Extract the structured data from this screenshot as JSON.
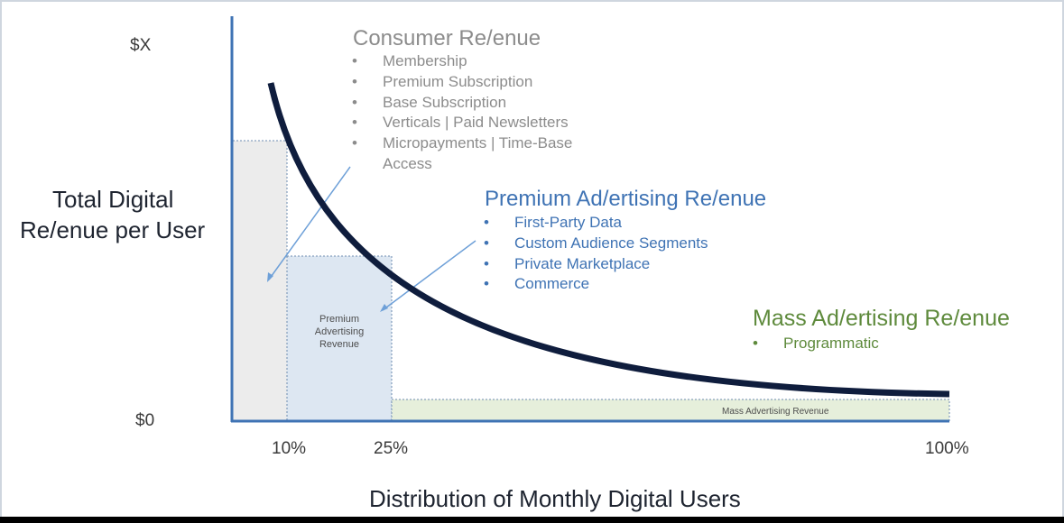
{
  "y_axis": {
    "label_line1": "Total Digital",
    "label_line2": "Re/enue per User",
    "top_tick": "$X",
    "bottom_tick": "$0"
  },
  "x_axis": {
    "label": "Distribution of Monthly Digital Users",
    "ticks": [
      "10%",
      "25%",
      "100%"
    ]
  },
  "consumer": {
    "title": "Consumer Re/enue",
    "items": [
      "Membership",
      "Premium Subscription",
      "Base Subscription",
      "Verticals | Paid Newsletters",
      "Micropayments | Time-Base",
      "Access"
    ]
  },
  "premium": {
    "title": "Premium Ad/ertising  Re/enue",
    "items": [
      "First-Party Data",
      "Custom Audience Segments",
      "Private Marketplace",
      "Commerce"
    ],
    "box_label_1": "Premium",
    "box_label_2": "Advertising",
    "box_label_3": "Revenue"
  },
  "mass": {
    "title": "Mass Ad/ertising Re/enue",
    "items": [
      "Programmatic"
    ],
    "box_label": "Mass Advertising Revenue"
  },
  "colors": {
    "curve": "#0f1d3d",
    "consumer_fill": "#ececec",
    "premium_fill": "#dde7f2",
    "mass_fill": "#e6efdb",
    "blue_text": "#3f73b4",
    "green_text": "#5e8a3c",
    "gray_text": "#8c8c8c"
  },
  "icons": {
    "bullet": "•"
  }
}
